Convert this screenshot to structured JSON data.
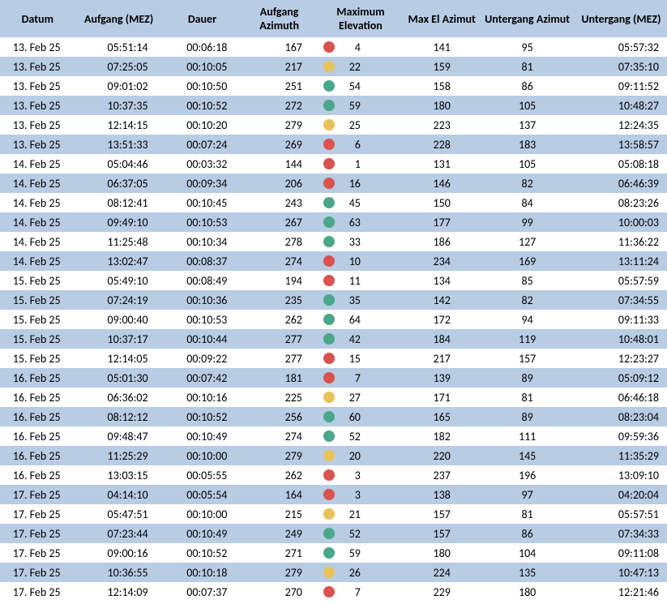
{
  "colors": {
    "red": "#d9534f",
    "yellow": "#e8c35a",
    "green": "#4aa78a"
  },
  "headers": {
    "datum": "Datum",
    "aufgang": "Aufgang (MEZ)",
    "dauer": "Dauer",
    "aufaz": "Aufgang Azimuth",
    "maxel": "Maximum Elevation",
    "maxaz": "Max El Azimut",
    "untaz": "Untergang Azimut",
    "untmez": "Untergang (MEZ)"
  },
  "rows": [
    {
      "datum": "13. Feb 25",
      "aufgang": "05:51:14",
      "dauer": "00:06:18",
      "aufaz": "167",
      "dot": "red",
      "maxel": "4",
      "maxaz": "141",
      "untaz": "95",
      "untmez": "05:57:32"
    },
    {
      "datum": "13. Feb 25",
      "aufgang": "07:25:05",
      "dauer": "00:10:05",
      "aufaz": "217",
      "dot": "yellow",
      "maxel": "22",
      "maxaz": "159",
      "untaz": "81",
      "untmez": "07:35:10"
    },
    {
      "datum": "13. Feb 25",
      "aufgang": "09:01:02",
      "dauer": "00:10:50",
      "aufaz": "251",
      "dot": "green",
      "maxel": "54",
      "maxaz": "158",
      "untaz": "86",
      "untmez": "09:11:52"
    },
    {
      "datum": "13. Feb 25",
      "aufgang": "10:37:35",
      "dauer": "00:10:52",
      "aufaz": "272",
      "dot": "green",
      "maxel": "59",
      "maxaz": "180",
      "untaz": "105",
      "untmez": "10:48:27"
    },
    {
      "datum": "13. Feb 25",
      "aufgang": "12:14:15",
      "dauer": "00:10:20",
      "aufaz": "279",
      "dot": "yellow",
      "maxel": "25",
      "maxaz": "223",
      "untaz": "137",
      "untmez": "12:24:35"
    },
    {
      "datum": "13. Feb 25",
      "aufgang": "13:51:33",
      "dauer": "00:07:24",
      "aufaz": "269",
      "dot": "red",
      "maxel": "6",
      "maxaz": "228",
      "untaz": "183",
      "untmez": "13:58:57"
    },
    {
      "datum": "14. Feb 25",
      "aufgang": "05:04:46",
      "dauer": "00:03:32",
      "aufaz": "144",
      "dot": "red",
      "maxel": "1",
      "maxaz": "131",
      "untaz": "105",
      "untmez": "05:08:18"
    },
    {
      "datum": "14. Feb 25",
      "aufgang": "06:37:05",
      "dauer": "00:09:34",
      "aufaz": "206",
      "dot": "red",
      "maxel": "16",
      "maxaz": "146",
      "untaz": "82",
      "untmez": "06:46:39"
    },
    {
      "datum": "14. Feb 25",
      "aufgang": "08:12:41",
      "dauer": "00:10:45",
      "aufaz": "243",
      "dot": "green",
      "maxel": "45",
      "maxaz": "150",
      "untaz": "84",
      "untmez": "08:23:26"
    },
    {
      "datum": "14. Feb 25",
      "aufgang": "09:49:10",
      "dauer": "00:10:53",
      "aufaz": "267",
      "dot": "green",
      "maxel": "63",
      "maxaz": "177",
      "untaz": "99",
      "untmez": "10:00:03"
    },
    {
      "datum": "14. Feb 25",
      "aufgang": "11:25:48",
      "dauer": "00:10:34",
      "aufaz": "278",
      "dot": "green",
      "maxel": "33",
      "maxaz": "186",
      "untaz": "127",
      "untmez": "11:36:22"
    },
    {
      "datum": "14. Feb 25",
      "aufgang": "13:02:47",
      "dauer": "00:08:37",
      "aufaz": "274",
      "dot": "red",
      "maxel": "10",
      "maxaz": "234",
      "untaz": "169",
      "untmez": "13:11:24"
    },
    {
      "datum": "15. Feb 25",
      "aufgang": "05:49:10",
      "dauer": "00:08:49",
      "aufaz": "194",
      "dot": "red",
      "maxel": "11",
      "maxaz": "134",
      "untaz": "85",
      "untmez": "05:57:59"
    },
    {
      "datum": "15. Feb 25",
      "aufgang": "07:24:19",
      "dauer": "00:10:36",
      "aufaz": "235",
      "dot": "green",
      "maxel": "35",
      "maxaz": "142",
      "untaz": "82",
      "untmez": "07:34:55"
    },
    {
      "datum": "15. Feb 25",
      "aufgang": "09:00:40",
      "dauer": "00:10:53",
      "aufaz": "262",
      "dot": "green",
      "maxel": "64",
      "maxaz": "172",
      "untaz": "94",
      "untmez": "09:11:33"
    },
    {
      "datum": "15. Feb 25",
      "aufgang": "10:37:17",
      "dauer": "00:10:44",
      "aufaz": "277",
      "dot": "green",
      "maxel": "42",
      "maxaz": "184",
      "untaz": "119",
      "untmez": "10:48:01"
    },
    {
      "datum": "15. Feb 25",
      "aufgang": "12:14:05",
      "dauer": "00:09:22",
      "aufaz": "277",
      "dot": "red",
      "maxel": "15",
      "maxaz": "217",
      "untaz": "157",
      "untmez": "12:23:27"
    },
    {
      "datum": "16. Feb 25",
      "aufgang": "05:01:30",
      "dauer": "00:07:42",
      "aufaz": "181",
      "dot": "red",
      "maxel": "7",
      "maxaz": "139",
      "untaz": "89",
      "untmez": "05:09:12"
    },
    {
      "datum": "16. Feb 25",
      "aufgang": "06:36:02",
      "dauer": "00:10:16",
      "aufaz": "225",
      "dot": "yellow",
      "maxel": "27",
      "maxaz": "171",
      "untaz": "81",
      "untmez": "06:46:18"
    },
    {
      "datum": "16. Feb 25",
      "aufgang": "08:12:12",
      "dauer": "00:10:52",
      "aufaz": "256",
      "dot": "green",
      "maxel": "60",
      "maxaz": "165",
      "untaz": "89",
      "untmez": "08:23:04"
    },
    {
      "datum": "16. Feb 25",
      "aufgang": "09:48:47",
      "dauer": "00:10:49",
      "aufaz": "274",
      "dot": "green",
      "maxel": "52",
      "maxaz": "182",
      "untaz": "111",
      "untmez": "09:59:36"
    },
    {
      "datum": "16. Feb 25",
      "aufgang": "11:25:29",
      "dauer": "00:10:00",
      "aufaz": "279",
      "dot": "yellow",
      "maxel": "20",
      "maxaz": "220",
      "untaz": "145",
      "untmez": "11:35:29"
    },
    {
      "datum": "16. Feb 25",
      "aufgang": "13:03:15",
      "dauer": "00:05:55",
      "aufaz": "262",
      "dot": "red",
      "maxel": "3",
      "maxaz": "237",
      "untaz": "196",
      "untmez": "13:09:10"
    },
    {
      "datum": "17. Feb 25",
      "aufgang": "04:14:10",
      "dauer": "00:05:54",
      "aufaz": "164",
      "dot": "red",
      "maxel": "3",
      "maxaz": "138",
      "untaz": "97",
      "untmez": "04:20:04"
    },
    {
      "datum": "17. Feb 25",
      "aufgang": "05:47:51",
      "dauer": "00:10:00",
      "aufaz": "215",
      "dot": "yellow",
      "maxel": "21",
      "maxaz": "157",
      "untaz": "81",
      "untmez": "05:57:51"
    },
    {
      "datum": "17. Feb 25",
      "aufgang": "07:23:44",
      "dauer": "00:10:49",
      "aufaz": "249",
      "dot": "green",
      "maxel": "52",
      "maxaz": "157",
      "untaz": "86",
      "untmez": "07:34:33"
    },
    {
      "datum": "17. Feb 25",
      "aufgang": "09:00:16",
      "dauer": "00:10:52",
      "aufaz": "271",
      "dot": "green",
      "maxel": "59",
      "maxaz": "180",
      "untaz": "104",
      "untmez": "09:11:08"
    },
    {
      "datum": "17. Feb 25",
      "aufgang": "10:36:55",
      "dauer": "00:10:18",
      "aufaz": "279",
      "dot": "yellow",
      "maxel": "26",
      "maxaz": "224",
      "untaz": "135",
      "untmez": "10:47:13"
    },
    {
      "datum": "17. Feb 25",
      "aufgang": "12:14:09",
      "dauer": "00:07:37",
      "aufaz": "270",
      "dot": "red",
      "maxel": "7",
      "maxaz": "229",
      "untaz": "180",
      "untmez": "12:21:46"
    }
  ]
}
